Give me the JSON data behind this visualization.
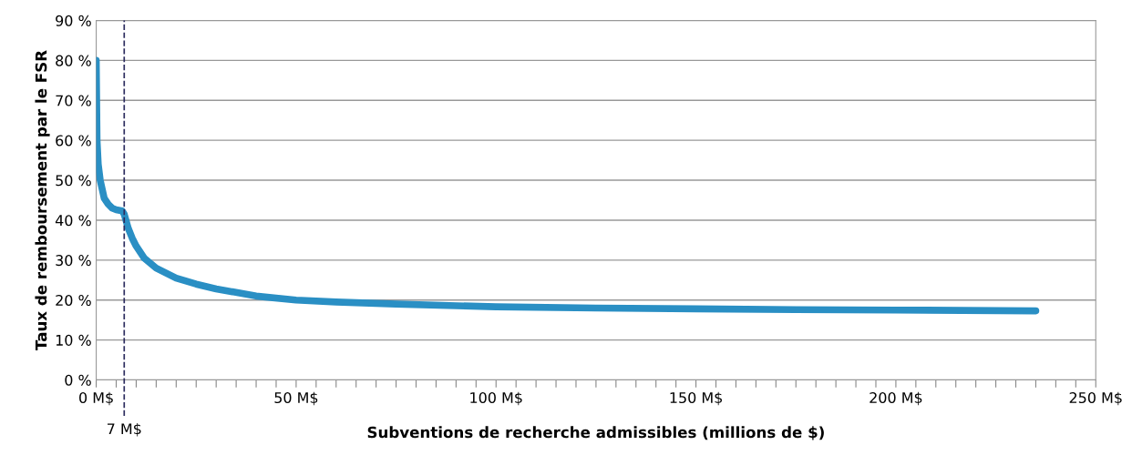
{
  "chart_data": {
    "type": "line",
    "xlabel": "Subventions de recherche admissibles (millions de $)",
    "ylabel": "Taux de remboursement par le FSR",
    "series": [
      {
        "color": "#2a8fc4",
        "x": [
          0,
          0.2,
          0.5,
          1,
          2,
          3,
          4,
          5,
          6.5,
          7,
          8,
          9,
          10,
          12,
          15,
          20,
          25,
          30,
          40,
          50,
          60,
          75,
          100,
          125,
          150,
          175,
          200,
          235
        ],
        "values": [
          80,
          60,
          54,
          50,
          45.5,
          44,
          43,
          42.6,
          42.3,
          41.5,
          38,
          35.5,
          33.5,
          30.5,
          28,
          25.5,
          24,
          22.8,
          21,
          20,
          19.5,
          19,
          18.3,
          18,
          17.8,
          17.6,
          17.5,
          17.3
        ]
      }
    ],
    "xlim": [
      0,
      250
    ],
    "xticks": [
      {
        "value": 0,
        "label": "0 M$"
      },
      {
        "value": 5,
        "label": null
      },
      {
        "value": 10,
        "label": null
      },
      {
        "value": 15,
        "label": null
      },
      {
        "value": 20,
        "label": null
      },
      {
        "value": 25,
        "label": null
      },
      {
        "value": 30,
        "label": null
      },
      {
        "value": 35,
        "label": null
      },
      {
        "value": 40,
        "label": null
      },
      {
        "value": 45,
        "label": null
      },
      {
        "value": 50,
        "label": "50 M$"
      },
      {
        "value": 55,
        "label": null
      },
      {
        "value": 60,
        "label": null
      },
      {
        "value": 65,
        "label": null
      },
      {
        "value": 70,
        "label": null
      },
      {
        "value": 75,
        "label": null
      },
      {
        "value": 80,
        "label": null
      },
      {
        "value": 85,
        "label": null
      },
      {
        "value": 90,
        "label": null
      },
      {
        "value": 95,
        "label": null
      },
      {
        "value": 100,
        "label": "100 M$"
      },
      {
        "value": 105,
        "label": null
      },
      {
        "value": 110,
        "label": null
      },
      {
        "value": 115,
        "label": null
      },
      {
        "value": 120,
        "label": null
      },
      {
        "value": 125,
        "label": null
      },
      {
        "value": 130,
        "label": null
      },
      {
        "value": 135,
        "label": null
      },
      {
        "value": 140,
        "label": null
      },
      {
        "value": 145,
        "label": null
      },
      {
        "value": 150,
        "label": "150 M$"
      },
      {
        "value": 155,
        "label": null
      },
      {
        "value": 160,
        "label": null
      },
      {
        "value": 165,
        "label": null
      },
      {
        "value": 170,
        "label": null
      },
      {
        "value": 175,
        "label": null
      },
      {
        "value": 180,
        "label": null
      },
      {
        "value": 185,
        "label": null
      },
      {
        "value": 190,
        "label": null
      },
      {
        "value": 195,
        "label": null
      },
      {
        "value": 200,
        "label": "200 M$"
      },
      {
        "value": 205,
        "label": null
      },
      {
        "value": 210,
        "label": null
      },
      {
        "value": 215,
        "label": null
      },
      {
        "value": 220,
        "label": null
      },
      {
        "value": 225,
        "label": null
      },
      {
        "value": 230,
        "label": null
      },
      {
        "value": 235,
        "label": null
      },
      {
        "value": 240,
        "label": null
      },
      {
        "value": 245,
        "label": null
      },
      {
        "value": 250,
        "label": "250 M$"
      }
    ],
    "ylim": [
      0,
      90
    ],
    "yticks": [
      {
        "value": 0,
        "label": "0 %"
      },
      {
        "value": 10,
        "label": "10 %"
      },
      {
        "value": 20,
        "label": "20 %"
      },
      {
        "value": 30,
        "label": "30 %"
      },
      {
        "value": 40,
        "label": "40 %"
      },
      {
        "value": 50,
        "label": "50 %"
      },
      {
        "value": 60,
        "label": "60 %"
      },
      {
        "value": 70,
        "label": "70 %"
      },
      {
        "value": 80,
        "label": "80 %"
      },
      {
        "value": 90,
        "label": "90 %"
      }
    ],
    "ref_lines": [
      {
        "axis": "x",
        "value": 7,
        "label": "7 M$",
        "color": "#2b2b5e",
        "line_style": "dashed"
      }
    ],
    "grid": "y",
    "marker": "none",
    "line_style": "solid"
  }
}
